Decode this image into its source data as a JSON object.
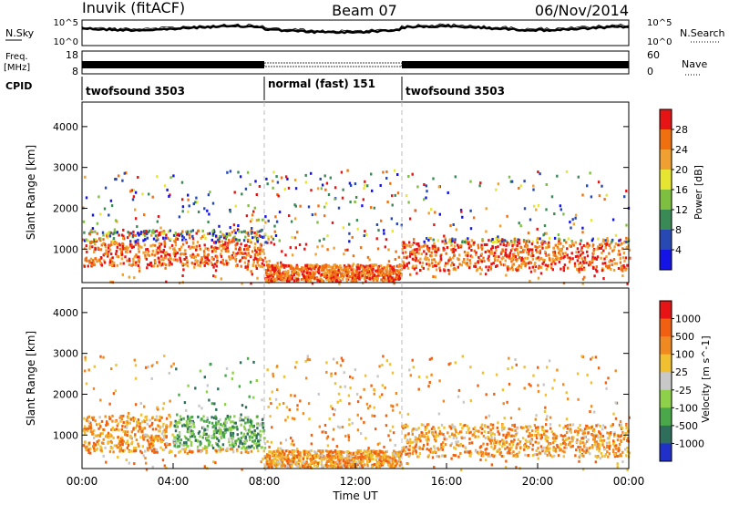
{
  "header": {
    "station": "Inuvik (fitACF)",
    "beam": "Beam 07",
    "date": "06/Nov/2014"
  },
  "noise_panel": {
    "left_label": "N.Sky",
    "right_label": "N.Search",
    "left_ticks": [
      "10^5",
      "10^0"
    ],
    "right_ticks": [
      "10^5",
      "10^0"
    ]
  },
  "freq_panel": {
    "left_label_1": "Freq.",
    "left_label_2": "[MHz]",
    "right_label": "Nave",
    "left_ticks": [
      "18",
      "8"
    ],
    "right_ticks": [
      "60",
      "0"
    ]
  },
  "cpid": {
    "label": "CPID",
    "segments": [
      {
        "name": "twofsound 3503",
        "start": 0,
        "end": 8
      },
      {
        "name": "normal (fast) 151",
        "start": 8,
        "end": 14
      },
      {
        "name": "twofsound 3503",
        "start": 14,
        "end": 24
      }
    ]
  },
  "chart_data": [
    {
      "type": "heatmap",
      "title": "",
      "ylabel": "Slant Range [km]",
      "ylim": [
        180,
        4600
      ],
      "y_ticks": [
        1000,
        2000,
        3000,
        4000
      ],
      "colorbar_label": "Power [dB]",
      "colorbar_ticks": [
        "28",
        "24",
        "20",
        "16",
        "12",
        "8",
        "4"
      ],
      "colors": [
        "#1414e6",
        "#2848b4",
        "#3a8a55",
        "#7fbf3f",
        "#e6e632",
        "#f0a030",
        "#f07010",
        "#e61414"
      ],
      "scatter_bands_km": [
        {
          "t": [
            0,
            8
          ],
          "range": [
            600,
            1500
          ],
          "level": "high"
        },
        {
          "t": [
            8,
            14
          ],
          "range": [
            250,
            650
          ],
          "level": "high"
        },
        {
          "t": [
            14,
            24
          ],
          "range": [
            500,
            1300
          ],
          "level": "high"
        }
      ]
    },
    {
      "type": "heatmap",
      "title": "",
      "ylabel": "Slant Range [km]",
      "ylim": [
        180,
        4600
      ],
      "y_ticks": [
        1000,
        2000,
        3000,
        4000
      ],
      "colorbar_label": "Velocity [m s^-1]",
      "colorbar_ticks": [
        "1000",
        "500",
        "100",
        "25",
        "-25",
        "-100",
        "-500",
        "-1000"
      ],
      "colors": [
        "#2030c8",
        "#2e6e5a",
        "#4aa84a",
        "#8fd04a",
        "#c8c8c8",
        "#f0c030",
        "#f08a20",
        "#f06010",
        "#e61414"
      ],
      "x_ticks": [
        "00:00",
        "04:00",
        "08:00",
        "12:00",
        "16:00",
        "20:00",
        "00:00"
      ],
      "xlabel": "Time UT",
      "xlim": [
        0,
        24
      ]
    }
  ]
}
